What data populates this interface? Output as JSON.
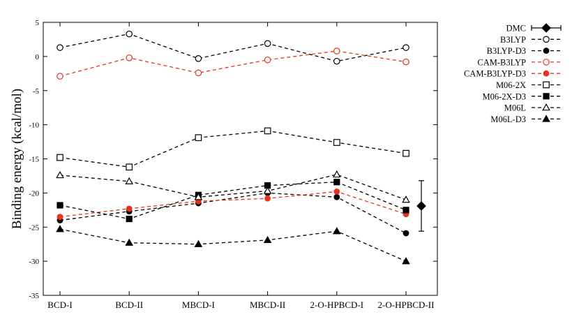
{
  "chart_data": {
    "type": "line",
    "title": "",
    "xlabel": "",
    "ylabel": "Binding energy (kcal/mol)",
    "ylim": [
      -35,
      5
    ],
    "yticks": [
      5,
      0,
      -5,
      -10,
      -15,
      -20,
      -25,
      -30,
      -35
    ],
    "grid": false,
    "legend_position": "outside-right",
    "categories": [
      "BCD-I",
      "BCD-II",
      "MBCD-I",
      "MBCD-II",
      "2-O-HPBCD-I",
      "2-O-HPBCD-II"
    ],
    "series": [
      {
        "name": "B3LYP",
        "color": "#000000",
        "marker": "circle-open",
        "values": [
          1.3,
          3.3,
          -0.3,
          1.9,
          -0.7,
          1.3
        ]
      },
      {
        "name": "B3LYP-D3",
        "color": "#000000",
        "marker": "circle-filled",
        "values": [
          -24.0,
          -22.7,
          -21.5,
          -20.0,
          -20.6,
          -25.9
        ]
      },
      {
        "name": "CAM-B3LYP",
        "color": "#e8321e",
        "marker": "circle-open",
        "values": [
          -2.9,
          -0.2,
          -2.4,
          -0.5,
          0.8,
          -0.8
        ]
      },
      {
        "name": "CAM-B3LYP-D3",
        "color": "#e8321e",
        "marker": "circle-filled",
        "values": [
          -23.5,
          -22.3,
          -21.2,
          -20.8,
          -19.8,
          -23.1
        ]
      },
      {
        "name": "M06-2X",
        "color": "#000000",
        "marker": "square-open",
        "values": [
          -14.8,
          -16.2,
          -11.9,
          -10.9,
          -12.6,
          -14.2
        ]
      },
      {
        "name": "M06-2X-D3",
        "color": "#000000",
        "marker": "square-filled",
        "values": [
          -21.8,
          -23.8,
          -20.3,
          -18.9,
          -18.4,
          -22.5
        ]
      },
      {
        "name": "M06L",
        "color": "#000000",
        "marker": "triangle-open",
        "values": [
          -17.4,
          -18.3,
          -20.6,
          -19.7,
          -17.3,
          -21.0
        ]
      },
      {
        "name": "M06L-D3",
        "color": "#000000",
        "marker": "triangle-filled",
        "values": [
          -25.3,
          -27.3,
          -27.5,
          -26.9,
          -25.6,
          -30.0
        ]
      }
    ],
    "reference": {
      "name": "DMC",
      "color": "#000000",
      "marker": "diamond-filled",
      "value": -21.9,
      "error": 3.7
    }
  }
}
